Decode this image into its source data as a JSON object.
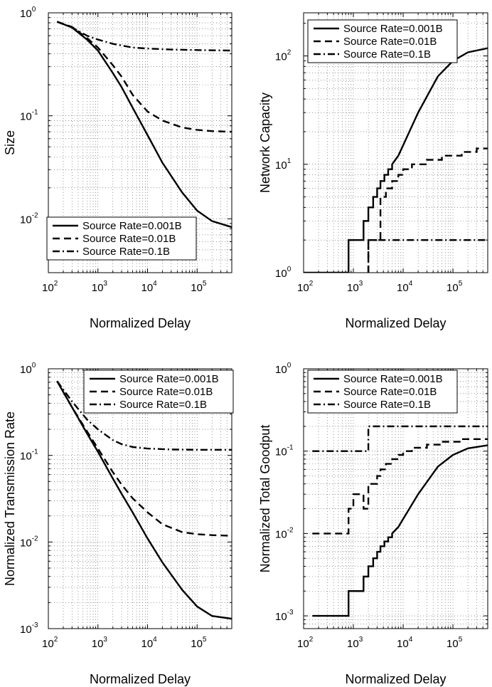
{
  "colors": {
    "line": "#000000",
    "grid": "#555555",
    "background": "#ffffff"
  },
  "chart_data": [
    {
      "type": "line",
      "log_x": true,
      "log_y": true,
      "xlim": [
        100,
        500000
      ],
      "ylim": [
        0.003,
        1
      ],
      "xlabel": "Normalized Delay",
      "ylabel": "Size",
      "x_ticks": [
        {
          "base": "10",
          "exp": "2"
        },
        {
          "base": "10",
          "exp": "3"
        },
        {
          "base": "10",
          "exp": "4"
        },
        {
          "base": "10",
          "exp": "5"
        }
      ],
      "y_ticks": [
        {
          "value": 0.01,
          "base": "10",
          "exp": "-2"
        },
        {
          "value": 0.1,
          "base": "10",
          "exp": "-1"
        },
        {
          "value": 1,
          "base": "10",
          "exp": "0"
        }
      ],
      "grid": true,
      "legend_position": "bottom-right",
      "series": [
        {
          "name": "Source Rate=0.001B",
          "style": "solid",
          "x": [
            150,
            300,
            600,
            1000,
            2000,
            3000,
            5000,
            10000,
            20000,
            50000,
            100000,
            200000,
            500000
          ],
          "y": [
            0.82,
            0.72,
            0.55,
            0.43,
            0.26,
            0.19,
            0.12,
            0.065,
            0.035,
            0.018,
            0.012,
            0.0095,
            0.0083
          ]
        },
        {
          "name": "Source Rate=0.01B",
          "style": "dashed",
          "x": [
            150,
            300,
            600,
            1000,
            2000,
            3000,
            5000,
            10000,
            20000,
            50000,
            100000,
            200000,
            500000
          ],
          "y": [
            0.82,
            0.73,
            0.57,
            0.46,
            0.31,
            0.24,
            0.16,
            0.11,
            0.09,
            0.077,
            0.073,
            0.071,
            0.07
          ]
        },
        {
          "name": "Source Rate=0.1B",
          "style": "dashdot",
          "x": [
            150,
            300,
            600,
            1000,
            2000,
            5000,
            10000,
            30000,
            100000,
            500000
          ],
          "y": [
            0.82,
            0.72,
            0.6,
            0.55,
            0.5,
            0.46,
            0.45,
            0.44,
            0.435,
            0.43
          ]
        }
      ]
    },
    {
      "type": "line",
      "log_x": true,
      "log_y": true,
      "xlim": [
        100,
        500000
      ],
      "ylim": [
        1,
        250
      ],
      "xlabel": "Normalized Delay",
      "ylabel": "Network Capacity",
      "x_ticks": [
        {
          "base": "10",
          "exp": "2"
        },
        {
          "base": "10",
          "exp": "3"
        },
        {
          "base": "10",
          "exp": "4"
        },
        {
          "base": "10",
          "exp": "5"
        }
      ],
      "y_ticks": [
        {
          "value": 1,
          "base": "10",
          "exp": "0"
        },
        {
          "value": 10,
          "base": "10",
          "exp": "1"
        },
        {
          "value": 100,
          "base": "10",
          "exp": "2"
        }
      ],
      "grid": true,
      "legend_position": "top-left",
      "series": [
        {
          "name": "Source Rate=0.001B",
          "style": "solid",
          "x": [
            100,
            800,
            800,
            1600,
            1600,
            2000,
            2000,
            2500,
            2500,
            3000,
            3000,
            3500,
            3500,
            4200,
            4200,
            5000,
            5000,
            6000,
            6000,
            8000,
            10000,
            20000,
            50000,
            100000,
            200000,
            500000
          ],
          "y": [
            1,
            1,
            2,
            2,
            3,
            3,
            4,
            4,
            5,
            5,
            6,
            6,
            7,
            7,
            8,
            8,
            9,
            9,
            10,
            12,
            15,
            30,
            65,
            90,
            108,
            118
          ]
        },
        {
          "name": "Source Rate=0.01B",
          "style": "dashed",
          "x": [
            2000,
            2000,
            3500,
            3500,
            4500,
            4500,
            6000,
            6000,
            8000,
            8000,
            10000,
            10000,
            15000,
            15000,
            30000,
            30000,
            60000,
            60000,
            150000,
            150000,
            300000,
            300000,
            500000
          ],
          "y": [
            1,
            2,
            2,
            5,
            5,
            6,
            6,
            7,
            7,
            8,
            8,
            9,
            9,
            10,
            10,
            11,
            11,
            12,
            12,
            13,
            13,
            14,
            14
          ]
        },
        {
          "name": "Source Rate=0.1B",
          "style": "dashdot",
          "x": [
            2000,
            2000,
            500000
          ],
          "y": [
            1,
            2,
            2
          ]
        }
      ]
    },
    {
      "type": "line",
      "log_x": true,
      "log_y": true,
      "xlim": [
        100,
        500000
      ],
      "ylim": [
        0.001,
        1
      ],
      "xlabel": "Normalized Delay",
      "ylabel": "Normalized Transmission Rate",
      "x_ticks": [
        {
          "base": "10",
          "exp": "2"
        },
        {
          "base": "10",
          "exp": "3"
        },
        {
          "base": "10",
          "exp": "4"
        },
        {
          "base": "10",
          "exp": "5"
        }
      ],
      "y_ticks": [
        {
          "value": 0.001,
          "base": "10",
          "exp": "-3"
        },
        {
          "value": 0.01,
          "base": "10",
          "exp": "-2"
        },
        {
          "value": 0.1,
          "base": "10",
          "exp": "-1"
        },
        {
          "value": 1,
          "base": "10",
          "exp": "0"
        }
      ],
      "grid": true,
      "legend_position": "top-right",
      "series": [
        {
          "name": "Source Rate=0.001B",
          "style": "solid",
          "x": [
            150,
            300,
            600,
            1000,
            2000,
            3000,
            5000,
            10000,
            20000,
            50000,
            100000,
            200000,
            500000
          ],
          "y": [
            0.72,
            0.36,
            0.18,
            0.11,
            0.054,
            0.036,
            0.022,
            0.011,
            0.0058,
            0.0028,
            0.0018,
            0.0014,
            0.0013
          ]
        },
        {
          "name": "Source Rate=0.01B",
          "style": "dashed",
          "x": [
            150,
            300,
            600,
            1000,
            2000,
            3000,
            5000,
            10000,
            20000,
            50000,
            100000,
            200000,
            500000
          ],
          "y": [
            0.72,
            0.36,
            0.19,
            0.12,
            0.064,
            0.046,
            0.032,
            0.022,
            0.016,
            0.013,
            0.0123,
            0.012,
            0.0118
          ]
        },
        {
          "name": "Source Rate=0.1B",
          "style": "dashdot",
          "x": [
            150,
            300,
            600,
            1000,
            2000,
            3000,
            5000,
            10000,
            30000,
            100000,
            500000
          ],
          "y": [
            0.72,
            0.42,
            0.26,
            0.2,
            0.15,
            0.135,
            0.125,
            0.12,
            0.117,
            0.116,
            0.116
          ]
        }
      ]
    },
    {
      "type": "line",
      "log_x": true,
      "log_y": true,
      "xlim": [
        100,
        500000
      ],
      "ylim": [
        0.0007,
        1
      ],
      "xlabel": "Normalized Delay",
      "ylabel": "Normalized Total Goodput",
      "x_ticks": [
        {
          "base": "10",
          "exp": "2"
        },
        {
          "base": "10",
          "exp": "3"
        },
        {
          "base": "10",
          "exp": "4"
        },
        {
          "base": "10",
          "exp": "5"
        }
      ],
      "y_ticks": [
        {
          "value": 0.001,
          "base": "10",
          "exp": "-3"
        },
        {
          "value": 0.01,
          "base": "10",
          "exp": "-2"
        },
        {
          "value": 0.1,
          "base": "10",
          "exp": "-1"
        },
        {
          "value": 1,
          "base": "10",
          "exp": "0"
        }
      ],
      "grid": true,
      "legend_position": "top-left",
      "series": [
        {
          "name": "Source Rate=0.001B",
          "style": "solid",
          "x": [
            150,
            800,
            800,
            1600,
            1600,
            2000,
            2000,
            2500,
            2500,
            3000,
            3000,
            3500,
            3500,
            4200,
            4200,
            5000,
            5000,
            6000,
            6000,
            8000,
            10000,
            20000,
            50000,
            100000,
            200000,
            500000
          ],
          "y": [
            0.001,
            0.001,
            0.002,
            0.002,
            0.003,
            0.003,
            0.004,
            0.004,
            0.005,
            0.005,
            0.006,
            0.006,
            0.007,
            0.007,
            0.008,
            0.008,
            0.009,
            0.009,
            0.01,
            0.012,
            0.015,
            0.03,
            0.065,
            0.09,
            0.108,
            0.118
          ]
        },
        {
          "name": "Source Rate=0.01B",
          "style": "dashed",
          "x": [
            150,
            800,
            800,
            1000,
            1000,
            1600,
            1600,
            2000,
            2000,
            3000,
            3000,
            3500,
            3500,
            4500,
            4500,
            6000,
            6000,
            8000,
            8000,
            10000,
            10000,
            15000,
            15000,
            30000,
            30000,
            60000,
            60000,
            150000,
            150000,
            300000,
            300000,
            500000
          ],
          "y": [
            0.01,
            0.01,
            0.02,
            0.02,
            0.03,
            0.03,
            0.02,
            0.02,
            0.04,
            0.04,
            0.05,
            0.05,
            0.06,
            0.06,
            0.07,
            0.07,
            0.08,
            0.08,
            0.09,
            0.09,
            0.1,
            0.1,
            0.11,
            0.11,
            0.12,
            0.12,
            0.13,
            0.13,
            0.14,
            0.14,
            0.14,
            0.14
          ]
        },
        {
          "name": "Source Rate=0.1B",
          "style": "dashdot",
          "x": [
            150,
            2000,
            2000,
            500000
          ],
          "y": [
            0.1,
            0.1,
            0.2,
            0.2
          ]
        }
      ]
    }
  ]
}
